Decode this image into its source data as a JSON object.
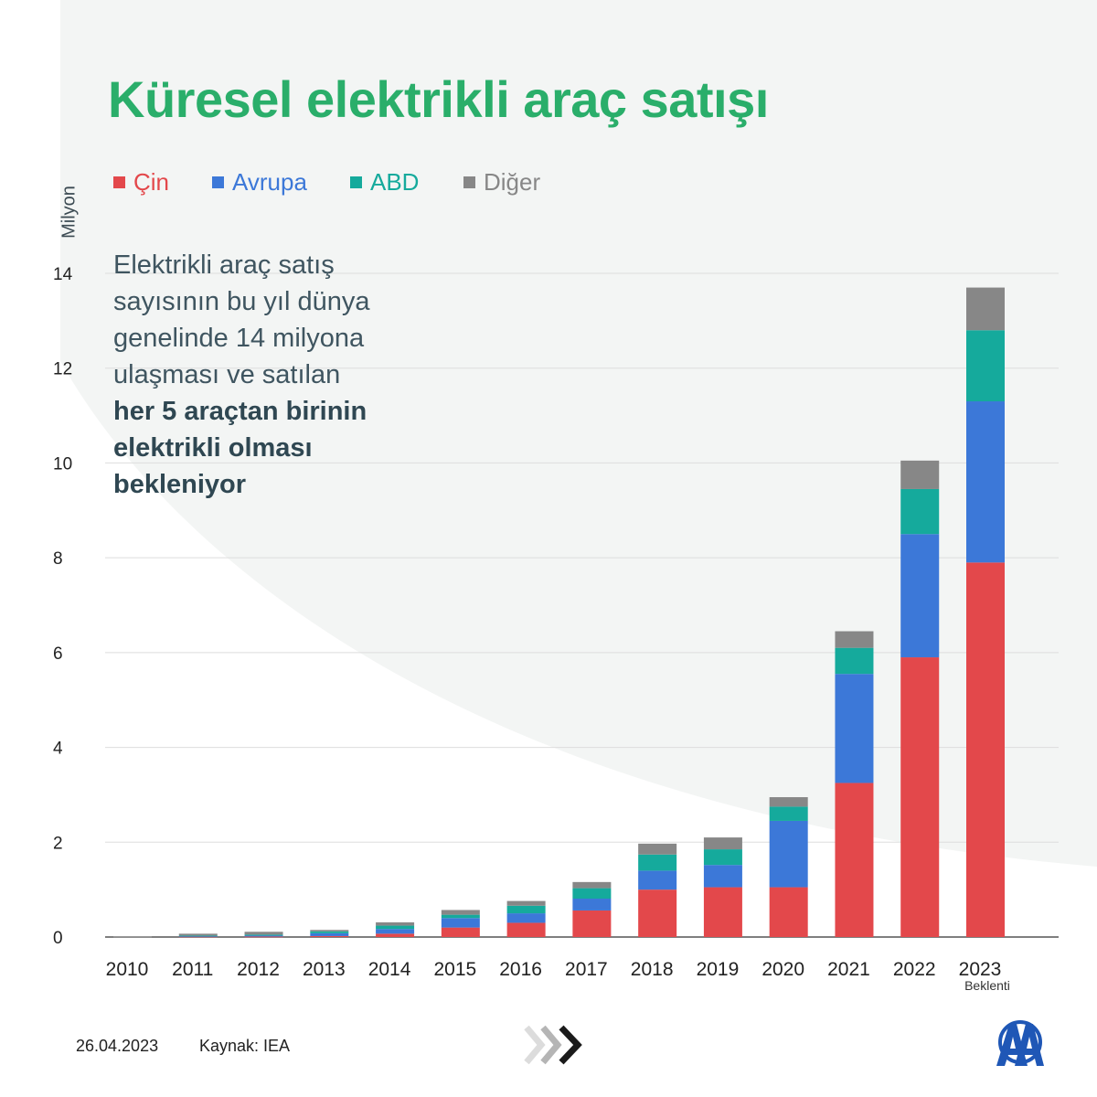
{
  "header": {
    "title": "Küresel elektrikli araç satışı"
  },
  "annotation": {
    "text": "Elektrikli araç satış sayısının bu yıl dünya genelinde 14 milyona ulaşması ve satılan",
    "bold_text": "her 5 araçtan birinin elektrikli olması bekleniyor"
  },
  "footer": {
    "date": "26.04.2023",
    "source": "Kaynak: IEA"
  },
  "colors": {
    "title": "#2aae6a",
    "china": "#e3484b",
    "europe": "#3c78d8",
    "usa": "#15aa9c",
    "other": "#878787",
    "logo": "#1f57b6"
  },
  "icons": [
    "chevron-arrows-icon",
    "aa-logo-icon"
  ],
  "chart_data": {
    "type": "bar",
    "stacked": true,
    "title": "Küresel elektrikli araç satışı",
    "ylabel": "Milyon",
    "ylim": [
      0,
      14
    ],
    "yticks": [
      "0",
      "2",
      "4",
      "6",
      "8",
      "10",
      "12",
      "14"
    ],
    "grid": true,
    "legend_position": "top-left",
    "categories": [
      "2010",
      "2011",
      "2012",
      "2013",
      "2014",
      "2015",
      "2016",
      "2017",
      "2018",
      "2019",
      "2020",
      "2021",
      "2022",
      "2023"
    ],
    "category_note": {
      "2023": "Beklenti"
    },
    "series": [
      {
        "name": "Çin",
        "color": "#e3484b",
        "values": [
          0.0,
          0.01,
          0.01,
          0.02,
          0.07,
          0.2,
          0.3,
          0.56,
          1.0,
          1.05,
          1.05,
          3.25,
          5.9,
          7.9
        ]
      },
      {
        "name": "Avrupa",
        "color": "#3c78d8",
        "values": [
          0.0,
          0.01,
          0.02,
          0.06,
          0.1,
          0.2,
          0.2,
          0.25,
          0.4,
          0.47,
          1.4,
          2.3,
          2.6,
          3.4
        ]
      },
      {
        "name": "ABD",
        "color": "#15aa9c",
        "values": [
          0.0,
          0.01,
          0.02,
          0.04,
          0.07,
          0.07,
          0.16,
          0.22,
          0.34,
          0.33,
          0.3,
          0.55,
          0.95,
          1.5
        ]
      },
      {
        "name": "Diğer",
        "color": "#878787",
        "values": [
          0.01,
          0.04,
          0.06,
          0.03,
          0.07,
          0.1,
          0.1,
          0.13,
          0.23,
          0.25,
          0.2,
          0.35,
          0.6,
          0.9
        ]
      }
    ]
  }
}
